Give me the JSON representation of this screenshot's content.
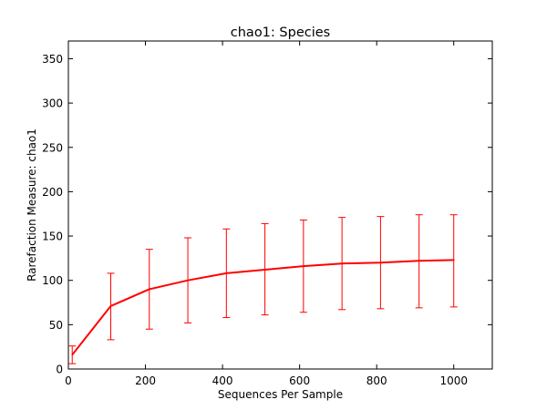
{
  "chart_data": {
    "type": "line",
    "title": "chao1: Species",
    "xlabel": "Sequences Per Sample",
    "ylabel": "Rarefaction Measure: chao1",
    "xlim": [
      0,
      1100
    ],
    "ylim": [
      0,
      370
    ],
    "xticks": [
      0,
      200,
      400,
      600,
      800,
      1000
    ],
    "yticks": [
      0,
      50,
      100,
      150,
      200,
      250,
      300,
      350
    ],
    "grid": false,
    "series": [
      {
        "color": "#ff0000",
        "x": [
          10,
          110,
          210,
          310,
          410,
          510,
          610,
          710,
          810,
          910,
          1000
        ],
        "y": [
          16,
          71,
          90,
          100,
          108,
          112,
          116,
          119,
          120,
          122,
          123
        ],
        "err_low": [
          6,
          33,
          45,
          52,
          58,
          61,
          64,
          67,
          68,
          69,
          70
        ],
        "err_high": [
          26,
          108,
          135,
          148,
          158,
          164,
          168,
          171,
          172,
          174,
          174
        ]
      }
    ]
  }
}
